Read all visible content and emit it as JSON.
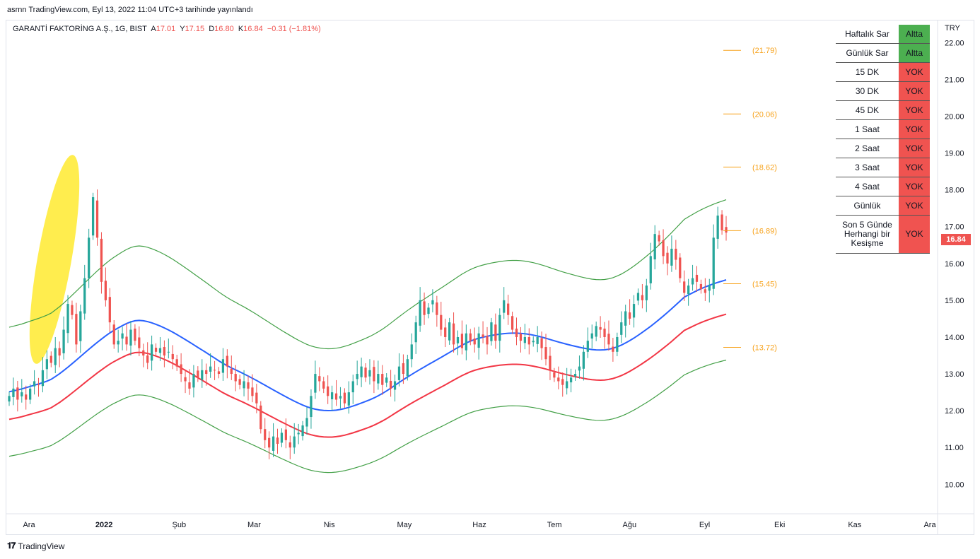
{
  "header": {
    "published_line": "asrnn TradingView.com, Eyl 13, 2022 11:04 UTC+3 tarihinde yayınlandı"
  },
  "legend": {
    "symbol": "GARANTİ FAKTORİNG A.Ş., 1G, BIST",
    "open_label": "A",
    "open": "17.01",
    "high_label": "Y",
    "high": "17.15",
    "low_label": "D",
    "low": "16.80",
    "close_label": "K",
    "close": "16.84",
    "change": "−0.31 (−1.81%)"
  },
  "price_scale": {
    "currency": "TRY",
    "last_price": "16.84"
  },
  "status_table": [
    {
      "label": "Haftalık Sar",
      "value": "Altta",
      "color": "#4caf50"
    },
    {
      "label": "Günlük Sar",
      "value": "Altta",
      "color": "#4caf50"
    },
    {
      "label": "15 DK",
      "value": "YOK",
      "color": "#f05350"
    },
    {
      "label": "30 DK",
      "value": "YOK",
      "color": "#f05350"
    },
    {
      "label": "45 DK",
      "value": "YOK",
      "color": "#f05350"
    },
    {
      "label": "1 Saat",
      "value": "YOK",
      "color": "#f05350"
    },
    {
      "label": "2 Saat",
      "value": "YOK",
      "color": "#f05350"
    },
    {
      "label": "3 Saat",
      "value": "YOK",
      "color": "#f05350"
    },
    {
      "label": "4 Saat",
      "value": "YOK",
      "color": "#f05350"
    },
    {
      "label": "Günlük",
      "value": "YOK",
      "color": "#f05350"
    },
    {
      "label": "Son 5 Günde Herhangi bir Kesişme",
      "value": "YOK",
      "color": "#f05350"
    }
  ],
  "footer": {
    "brand": "TradingView"
  },
  "chart_data": {
    "type": "candlestick",
    "y_ticks": [
      "22.00",
      "21.00",
      "20.00",
      "19.00",
      "18.00",
      "17.00",
      "16.00",
      "15.00",
      "14.00",
      "13.00",
      "12.00",
      "11.00",
      "10.00"
    ],
    "ylim": [
      9.2,
      22.6
    ],
    "x_ticks": [
      "Ara",
      "2022",
      "Şub",
      "Mar",
      "Nis",
      "May",
      "Haz",
      "Tem",
      "Ağu",
      "Eyl",
      "Eki",
      "Kas",
      "Ara"
    ],
    "levels": [
      {
        "label": "(21.79)",
        "value": 21.79
      },
      {
        "label": "(20.06)",
        "value": 20.06
      },
      {
        "label": "(18.62)",
        "value": 18.62
      },
      {
        "label": "(16.89)",
        "value": 16.89
      },
      {
        "label": "(15.45)",
        "value": 15.45
      },
      {
        "label": "(13.72)",
        "value": 13.72
      }
    ],
    "colors": {
      "up": "#26a69a",
      "down": "#ef5350",
      "mid_line": "#2962ff",
      "lower_line": "#f23645",
      "band": "#43a047",
      "level": "#f7a21b",
      "highlight": "#ffeb3b"
    },
    "closes": [
      12.4,
      12.6,
      12.3,
      12.5,
      12.3,
      12.6,
      12.8,
      12.7,
      13.1,
      13.4,
      13.3,
      13.7,
      13.5,
      14.2,
      14.9,
      14.6,
      13.8,
      14.7,
      15.6,
      16.7,
      17.8,
      16.7,
      15.5,
      15.0,
      14.4,
      13.8,
      13.9,
      14.1,
      13.8,
      14.2,
      13.9,
      13.7,
      13.5,
      13.3,
      13.8,
      13.6,
      13.7,
      13.5,
      13.6,
      13.4,
      13.2,
      13.0,
      12.8,
      12.6,
      13.0,
      12.9,
      13.1,
      13.0,
      13.2,
      13.1,
      13.0,
      13.4,
      13.2,
      13.0,
      12.8,
      12.7,
      12.8,
      12.6,
      12.4,
      12.2,
      11.5,
      11.2,
      11.0,
      11.3,
      11.1,
      11.4,
      11.2,
      11.0,
      11.3,
      11.4,
      11.6,
      11.8,
      12.4,
      13.0,
      12.8,
      12.6,
      12.4,
      12.5,
      12.3,
      12.4,
      12.2,
      12.5,
      12.8,
      13.0,
      13.2,
      12.9,
      13.1,
      12.8,
      13.0,
      12.7,
      12.9,
      12.6,
      12.8,
      13.2,
      13.0,
      13.4,
      13.8,
      14.4,
      15.0,
      14.6,
      14.8,
      15.0,
      14.6,
      14.2,
      14.0,
      14.4,
      13.8,
      14.0,
      13.7,
      14.1,
      13.9,
      13.8,
      14.1,
      14.0,
      13.8,
      14.4,
      13.9,
      14.6,
      15.0,
      14.6,
      14.2,
      14.0,
      13.9,
      14.0,
      13.8,
      13.9,
      14.0,
      13.7,
      13.4,
      13.1,
      12.9,
      12.8,
      12.7,
      12.8,
      12.9,
      13.0,
      13.2,
      13.6,
      13.9,
      14.1,
      14.3,
      14.2,
      14.0,
      13.8,
      13.6,
      14.0,
      14.4,
      14.7,
      14.5,
      14.9,
      15.2,
      15.0,
      15.4,
      16.2,
      16.8,
      16.6,
      16.2,
      16.0,
      16.4,
      16.1,
      15.6,
      15.2,
      15.4,
      15.6,
      15.5,
      15.3,
      15.2,
      15.4,
      16.7,
      17.3,
      16.9,
      16.84
    ]
  }
}
